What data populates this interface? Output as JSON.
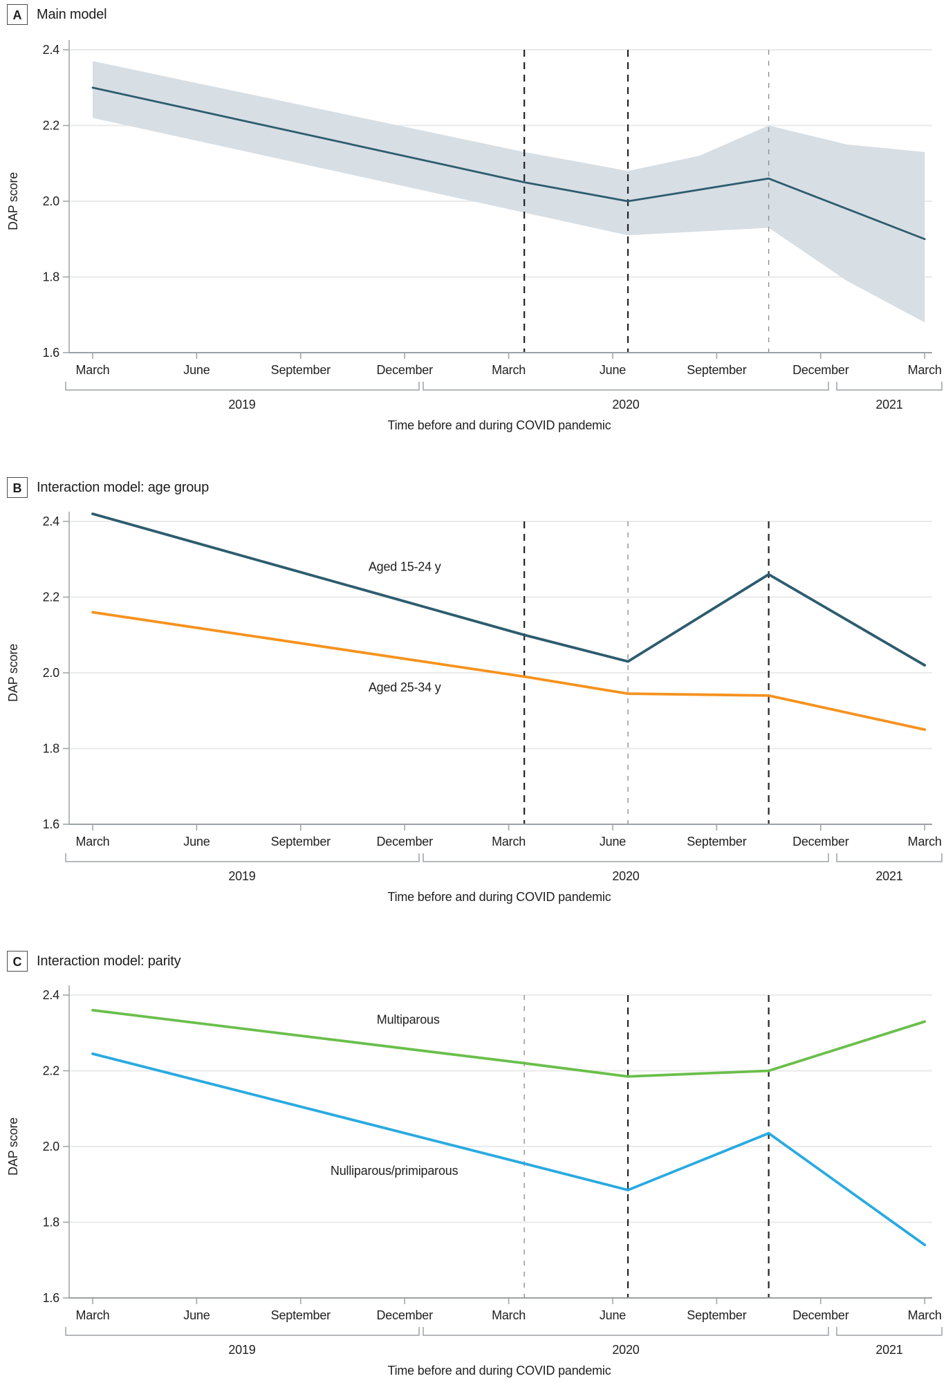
{
  "figure": {
    "ylabel": "DAP score",
    "xlabel": "Time before and during COVID pandemic",
    "y_tick_labels": [
      "2.4",
      "2.2",
      "2.0",
      "1.8",
      "1.6"
    ],
    "y_tick_values": [
      2.4,
      2.2,
      2.0,
      1.8,
      1.6
    ],
    "ylim": [
      1.6,
      2.4
    ],
    "month_tick_labels": [
      "March",
      "June",
      "September",
      "December",
      "March",
      "June",
      "September",
      "December",
      "March"
    ],
    "month_tick_positions": [
      0,
      3,
      6,
      9,
      12,
      15,
      18,
      21,
      24
    ],
    "year_labels": [
      "2019",
      "2020",
      "2021"
    ],
    "dashed_lines_months_since_mar2019": [
      12.45,
      15.44,
      19.5
    ],
    "colors": {
      "main_line": "#2d5c6e",
      "ci_band": "#d7dee4",
      "aged_15_24": "#2d5c6e",
      "aged_25_34": "#f6921e",
      "multiparous": "#6abf4b",
      "nulliparous_primiparous": "#29aae1",
      "gridline": "#eaeaea",
      "axis": "#9ba1a4",
      "dash_bold": "#222222",
      "dash_light": "#8f8f8f",
      "text": "#212121"
    }
  },
  "chart_data": [
    {
      "panel": "A",
      "title": "Main model",
      "type": "line",
      "x_months_since_mar2019": [
        0,
        12.45,
        15.44,
        19.5,
        24
      ],
      "x_anchor_dates": [
        "March 2019",
        "mid-April 2020",
        "mid-June 2020",
        "late October 2020",
        "March 2021"
      ],
      "series": [
        {
          "name": "DAP score",
          "values": [
            2.3,
            2.05,
            2.0,
            2.06,
            1.9
          ],
          "color_key": "main_line",
          "width": 2.8
        }
      ],
      "ci_band": {
        "x_months": [
          0,
          12.45,
          15.44,
          17.5,
          19.5,
          21.75,
          24
        ],
        "upper": [
          2.37,
          2.13,
          2.08,
          2.12,
          2.2,
          2.15,
          2.13
        ],
        "lower": [
          2.22,
          1.97,
          1.91,
          1.92,
          1.93,
          1.79,
          1.68
        ],
        "color_key": "ci_band"
      },
      "dash_emphasis": [
        "bold",
        "bold",
        "light"
      ],
      "annotations": []
    },
    {
      "panel": "B",
      "title": "Interaction model: age group",
      "type": "line",
      "x_months_since_mar2019": [
        0,
        12.45,
        15.44,
        19.5,
        24
      ],
      "x_anchor_dates": [
        "March 2019",
        "mid-April 2020",
        "mid-June 2020",
        "late October 2020",
        "March 2021"
      ],
      "series": [
        {
          "name": "Aged 15-24 y",
          "values": [
            2.42,
            2.1,
            2.03,
            2.26,
            2.02
          ],
          "color_key": "aged_15_24",
          "width": 3.8
        },
        {
          "name": "Aged 25-34 y",
          "values": [
            2.16,
            1.99,
            1.945,
            1.94,
            1.85
          ],
          "color_key": "aged_25_34",
          "width": 3.8
        }
      ],
      "dash_emphasis": [
        "bold",
        "light",
        "bold"
      ],
      "annotations": [
        {
          "text": "Aged 15-24 y",
          "x_months": 9.0,
          "dap": 2.28
        },
        {
          "text": "Aged 25-34 y",
          "x_months": 9.0,
          "dap": 1.962
        }
      ]
    },
    {
      "panel": "C",
      "title": "Interaction model: parity",
      "type": "line",
      "x_months_since_mar2019": [
        0,
        12.45,
        15.44,
        19.5,
        24
      ],
      "x_anchor_dates": [
        "March 2019",
        "mid-April 2020",
        "mid-June 2020",
        "late October 2020",
        "March 2021"
      ],
      "series": [
        {
          "name": "Multiparous",
          "values": [
            2.36,
            2.22,
            2.185,
            2.2,
            2.33
          ],
          "color_key": "multiparous",
          "width": 3.8
        },
        {
          "name": "Nulliparous/primiparous",
          "values": [
            2.245,
            1.955,
            1.885,
            2.035,
            1.74
          ],
          "color_key": "nulliparous_primiparous",
          "width": 3.8
        }
      ],
      "dash_emphasis": [
        "light",
        "bold",
        "bold"
      ],
      "annotations": [
        {
          "text": "Multiparous",
          "x_months": 9.1,
          "dap": 2.335
        },
        {
          "text": "Nulliparous/primiparous",
          "x_months": 8.7,
          "dap": 1.936
        }
      ]
    }
  ]
}
